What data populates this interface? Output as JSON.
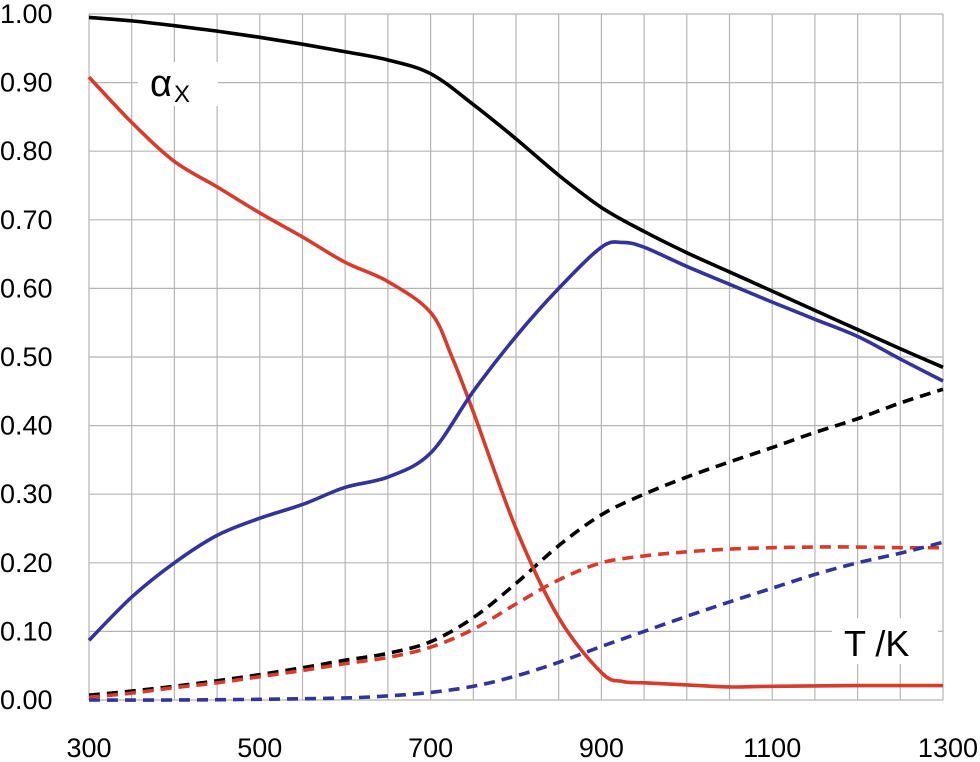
{
  "chart_data": {
    "type": "line",
    "xlim": [
      300,
      1300
    ],
    "ylim": [
      0.0,
      1.0
    ],
    "x_ticks": [
      "300",
      "500",
      "700",
      "900",
      "1100",
      "1300"
    ],
    "y_ticks": [
      "0.00",
      "0.10",
      "0.20",
      "0.30",
      "0.40",
      "0.50",
      "0.60",
      "0.70",
      "0.80",
      "0.90",
      "1.00"
    ],
    "x_gridlines_every": 50,
    "y_gridlines_every": 0.1,
    "grid": true,
    "annotations": {
      "y_symbol": "α",
      "y_subscript": "X",
      "x_label": "T /K"
    },
    "series": [
      {
        "color": "#000000",
        "dashed": false,
        "x": [
          300,
          350,
          400,
          450,
          500,
          550,
          600,
          650,
          700,
          750,
          800,
          850,
          900,
          950,
          1000,
          1050,
          1100,
          1150,
          1200,
          1250,
          1300
        ],
        "y": [
          0.995,
          0.99,
          0.983,
          0.975,
          0.966,
          0.956,
          0.945,
          0.933,
          0.913,
          0.868,
          0.818,
          0.765,
          0.718,
          0.683,
          0.652,
          0.624,
          0.596,
          0.568,
          0.54,
          0.512,
          0.485
        ]
      },
      {
        "color": "#d83b2b",
        "dashed": false,
        "x": [
          300,
          350,
          400,
          450,
          500,
          550,
          600,
          650,
          700,
          725,
          750,
          800,
          850,
          900,
          925,
          950,
          1000,
          1050,
          1100,
          1200,
          1300
        ],
        "y": [
          0.908,
          0.842,
          0.785,
          0.748,
          0.71,
          0.675,
          0.638,
          0.61,
          0.565,
          0.5,
          0.42,
          0.25,
          0.12,
          0.04,
          0.027,
          0.025,
          0.022,
          0.019,
          0.02,
          0.021,
          0.021
        ]
      },
      {
        "color": "#333399",
        "dashed": false,
        "x": [
          300,
          350,
          400,
          450,
          500,
          550,
          600,
          650,
          700,
          750,
          800,
          850,
          900,
          925,
          950,
          1000,
          1050,
          1100,
          1150,
          1200,
          1250,
          1300
        ],
        "y": [
          0.087,
          0.15,
          0.2,
          0.24,
          0.265,
          0.285,
          0.31,
          0.325,
          0.36,
          0.45,
          0.53,
          0.6,
          0.66,
          0.667,
          0.66,
          0.632,
          0.606,
          0.58,
          0.555,
          0.53,
          0.497,
          0.465
        ]
      },
      {
        "color": "#000000",
        "dashed": true,
        "x": [
          300,
          350,
          400,
          450,
          500,
          550,
          600,
          650,
          700,
          750,
          800,
          850,
          900,
          950,
          1000,
          1050,
          1100,
          1150,
          1200,
          1250,
          1300
        ],
        "y": [
          0.007,
          0.013,
          0.02,
          0.028,
          0.037,
          0.047,
          0.058,
          0.068,
          0.085,
          0.12,
          0.17,
          0.225,
          0.27,
          0.3,
          0.325,
          0.347,
          0.368,
          0.39,
          0.41,
          0.433,
          0.453
        ]
      },
      {
        "color": "#d83b2b",
        "dashed": true,
        "x": [
          300,
          350,
          400,
          450,
          500,
          550,
          600,
          650,
          700,
          750,
          800,
          850,
          900,
          950,
          1000,
          1050,
          1100,
          1150,
          1200,
          1250,
          1300
        ],
        "y": [
          0.004,
          0.01,
          0.018,
          0.025,
          0.034,
          0.043,
          0.053,
          0.062,
          0.077,
          0.103,
          0.14,
          0.175,
          0.2,
          0.21,
          0.216,
          0.22,
          0.222,
          0.223,
          0.223,
          0.222,
          0.222
        ]
      },
      {
        "color": "#333399",
        "dashed": true,
        "x": [
          300,
          400,
          500,
          600,
          650,
          700,
          750,
          800,
          850,
          900,
          950,
          1000,
          1050,
          1100,
          1150,
          1200,
          1250,
          1300
        ],
        "y": [
          0.0,
          0.0,
          0.001,
          0.003,
          0.006,
          0.011,
          0.02,
          0.035,
          0.055,
          0.078,
          0.1,
          0.122,
          0.143,
          0.163,
          0.183,
          0.2,
          0.214,
          0.23
        ]
      }
    ]
  }
}
